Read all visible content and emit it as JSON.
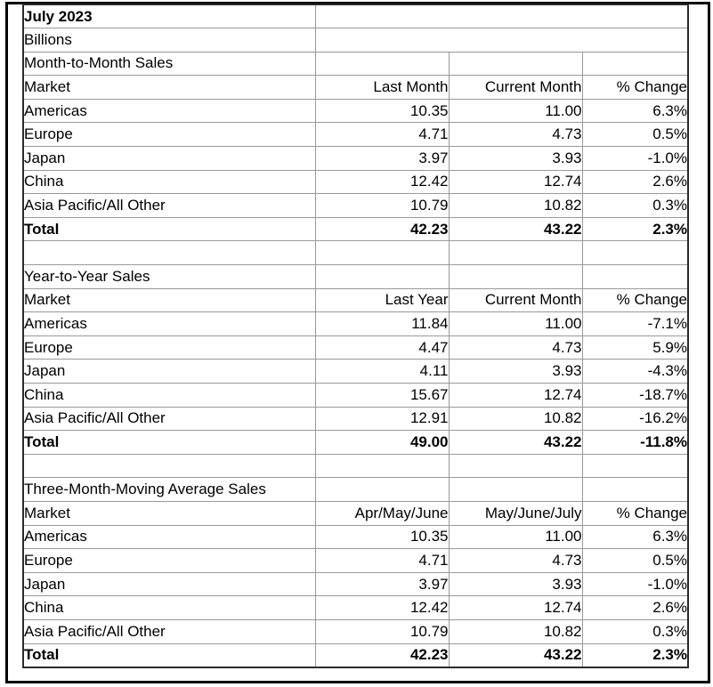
{
  "report": {
    "period": "July 2023",
    "units": "Billions"
  },
  "sections": [
    {
      "title": "Month-to-Month Sales",
      "columns": [
        "Market",
        "Last Month",
        "Current Month",
        "% Change"
      ],
      "rows": [
        [
          "Americas",
          "10.35",
          "11.00",
          "6.3%"
        ],
        [
          "Europe",
          "4.71",
          "4.73",
          "0.5%"
        ],
        [
          "Japan",
          "3.97",
          "3.93",
          "-1.0%"
        ],
        [
          "China",
          "12.42",
          "12.74",
          "2.6%"
        ],
        [
          "Asia Pacific/All Other",
          "10.79",
          "10.82",
          "0.3%"
        ]
      ],
      "total": [
        "Total",
        "42.23",
        "43.22",
        "2.3%"
      ]
    },
    {
      "title": "Year-to-Year Sales",
      "columns": [
        "Market",
        "Last Year",
        "Current Month",
        "% Change"
      ],
      "rows": [
        [
          "Americas",
          "11.84",
          "11.00",
          "-7.1%"
        ],
        [
          "Europe",
          "4.47",
          "4.73",
          "5.9%"
        ],
        [
          "Japan",
          "4.11",
          "3.93",
          "-4.3%"
        ],
        [
          "China",
          "15.67",
          "12.74",
          "-18.7%"
        ],
        [
          "Asia Pacific/All Other",
          "12.91",
          "10.82",
          "-16.2%"
        ]
      ],
      "total": [
        "Total",
        "49.00",
        "43.22",
        "-11.8%"
      ]
    },
    {
      "title": "Three-Month-Moving Average Sales",
      "columns": [
        "Market",
        "Apr/May/June",
        "May/June/July",
        "% Change"
      ],
      "rows": [
        [
          "Americas",
          "10.35",
          "11.00",
          "6.3%"
        ],
        [
          "Europe",
          "4.71",
          "4.73",
          "0.5%"
        ],
        [
          "Japan",
          "3.97",
          "3.93",
          "-1.0%"
        ],
        [
          "China",
          "12.42",
          "12.74",
          "2.6%"
        ],
        [
          "Asia Pacific/All Other",
          "10.79",
          "10.82",
          "0.3%"
        ]
      ],
      "total": [
        "Total",
        "42.23",
        "43.22",
        "2.3%"
      ]
    }
  ],
  "colors": {
    "grid_line": "#999999",
    "table_border": "#2b2b2b",
    "frame_border": "#000000",
    "text": "#000000",
    "background": "#ffffff"
  }
}
